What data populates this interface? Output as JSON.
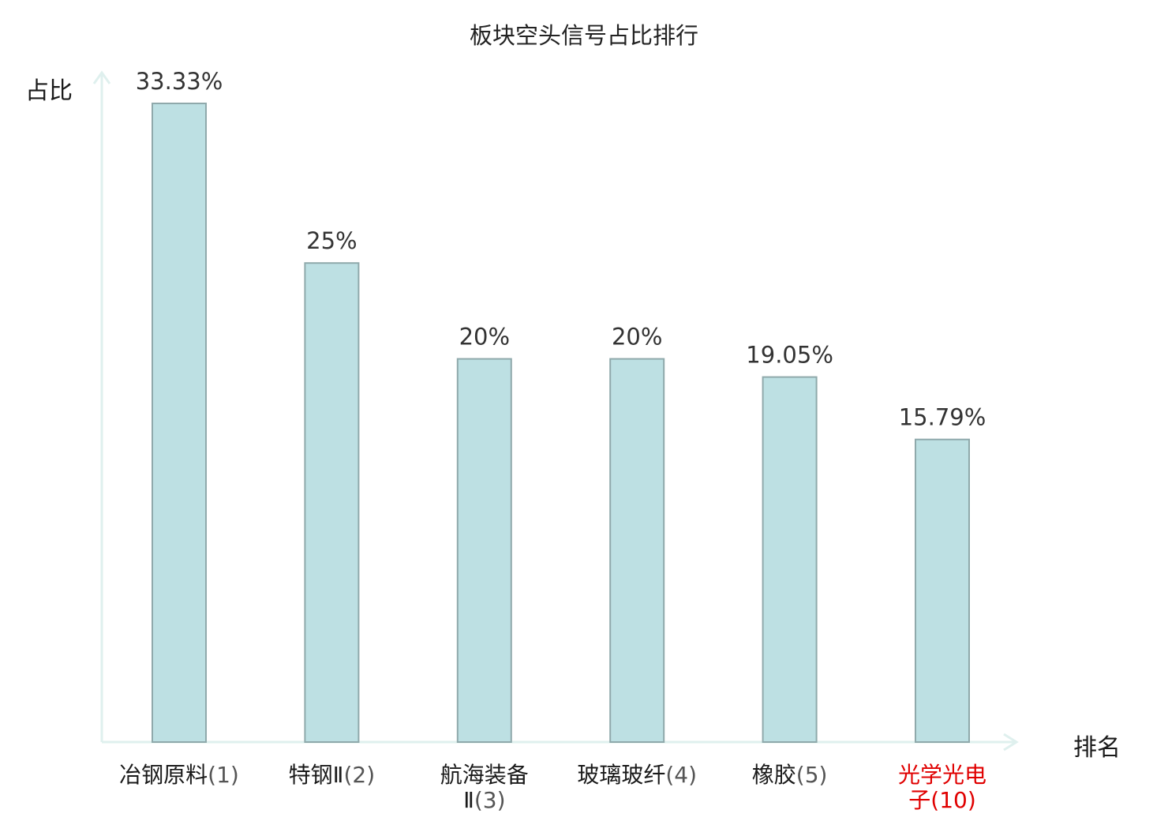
{
  "chart_data": {
    "type": "bar",
    "title": "板块空头信号占比排行",
    "ylabel": "占比",
    "xlabel": "排名",
    "categories": [
      {
        "name": "冶钢原料",
        "rank": "(1)",
        "highlight": false
      },
      {
        "name": "特钢Ⅱ",
        "rank": "(2)",
        "highlight": false
      },
      {
        "name": "航海装备Ⅱ",
        "rank": "(3)",
        "highlight": false
      },
      {
        "name": "玻璃玻纤",
        "rank": "(4)",
        "highlight": false
      },
      {
        "name": "橡胶",
        "rank": "(5)",
        "highlight": false
      },
      {
        "name": "光学光电子",
        "rank": "(10)",
        "highlight": true
      }
    ],
    "values": [
      33.33,
      25,
      20,
      20,
      19.05,
      15.79
    ],
    "value_labels": [
      "33.33%",
      "25%",
      "20%",
      "20%",
      "19.05%",
      "15.79%"
    ],
    "ylim": [
      0,
      33.33
    ],
    "grid": false,
    "colors": {
      "bar_fill": "#bde0e3",
      "bar_stroke": "#8fa9ab",
      "axis": "#dff0ee",
      "highlight_label": "#e00000"
    }
  }
}
